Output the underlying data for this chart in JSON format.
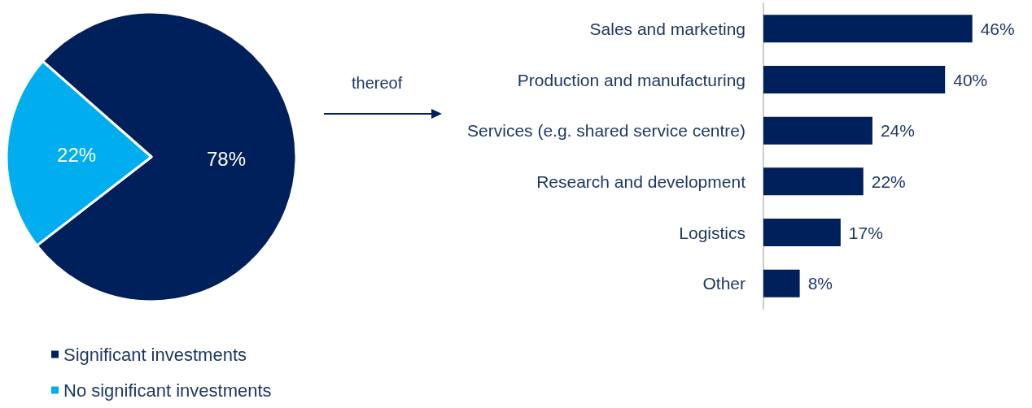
{
  "chart_data": [
    {
      "type": "pie",
      "categories": [
        "Significant investments",
        "No significant investments"
      ],
      "values": [
        78,
        22
      ],
      "colors": [
        "#00205b",
        "#00aeef"
      ],
      "value_labels": [
        "78%",
        "22%"
      ],
      "legend": "bottom left"
    },
    {
      "type": "bar",
      "orientation": "horizontal",
      "categories": [
        "Sales and marketing",
        "Production and manufacturing",
        "Services (e.g. shared service centre)",
        "Research and development",
        "Logistics",
        "Other"
      ],
      "values": [
        46,
        40,
        24,
        22,
        17,
        8
      ],
      "color": "#00205b",
      "value_labels": [
        "46%",
        "40%",
        "24%",
        "22%",
        "17%",
        "8%"
      ],
      "annotations": [
        "thereof"
      ]
    }
  ]
}
